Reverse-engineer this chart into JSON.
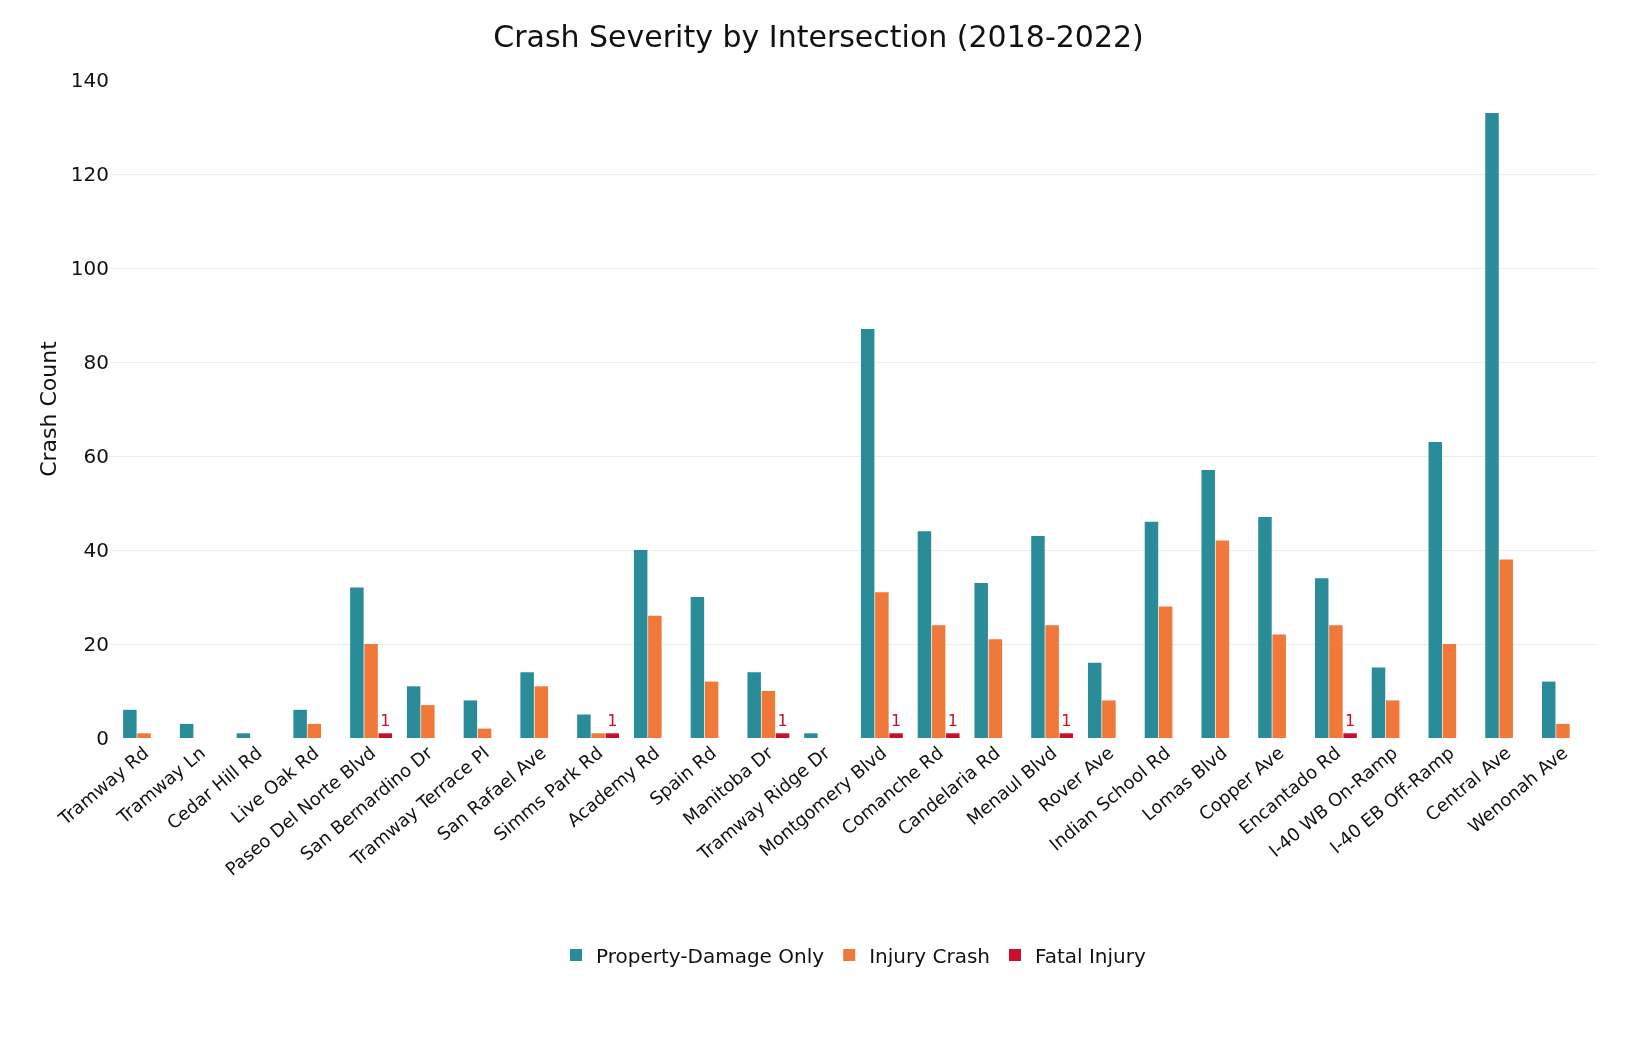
{
  "chart_data": {
    "type": "bar",
    "title": "Crash Severity by Intersection (2018-2022)",
    "ylabel": "Crash Count",
    "categories": [
      "Tramway Rd",
      "Tramway Ln",
      "Cedar Hill Rd",
      "Live Oak Rd",
      "Paseo Del Norte Blvd",
      "San Bernardino Dr",
      "Tramway Terrace Pl",
      "San Rafael Ave",
      "Simms Park Rd",
      "Academy Rd",
      "Spain Rd",
      "Manitoba Dr",
      "Tramway Ridge Dr",
      "Montgomery Blvd",
      "Comanche Rd",
      "Candelaria Rd",
      "Menaul Blvd",
      "Rover Ave",
      "Indian School Rd",
      "Lomas Blvd",
      "Copper Ave",
      "Encantado Rd",
      "I-40 WB On-Ramp",
      "I-40 EB Off-Ramp",
      "Central Ave",
      "Wenonah Ave"
    ],
    "series": [
      {
        "name": "Property-Damage Only",
        "color": "#2a8c99",
        "values": [
          6,
          3,
          1,
          6,
          32,
          11,
          8,
          14,
          5,
          40,
          30,
          14,
          1,
          87,
          44,
          33,
          43,
          16,
          46,
          57,
          47,
          34,
          15,
          63,
          133,
          12
        ]
      },
      {
        "name": "Injury Crash",
        "color": "#f07838",
        "values": [
          1,
          null,
          null,
          3,
          20,
          7,
          2,
          11,
          1,
          26,
          12,
          10,
          null,
          31,
          24,
          21,
          24,
          8,
          28,
          42,
          22,
          24,
          8,
          20,
          38,
          3
        ]
      },
      {
        "name": "Fatal Injury",
        "color": "#c8102e",
        "values": [
          null,
          null,
          null,
          null,
          1,
          null,
          null,
          null,
          1,
          null,
          null,
          1,
          null,
          1,
          1,
          null,
          1,
          null,
          null,
          null,
          null,
          1,
          null,
          null,
          null,
          null
        ],
        "value_labels": [
          null,
          null,
          null,
          null,
          "1",
          null,
          null,
          null,
          "1",
          null,
          null,
          "1",
          null,
          "1",
          "1",
          null,
          "1",
          null,
          null,
          null,
          null,
          "1",
          null,
          null,
          null,
          null
        ]
      }
    ],
    "ylim": [
      0,
      140
    ],
    "yticks": [
      0,
      20,
      40,
      60,
      80,
      100,
      120,
      140
    ],
    "grid": "y",
    "legend": "bottom"
  }
}
